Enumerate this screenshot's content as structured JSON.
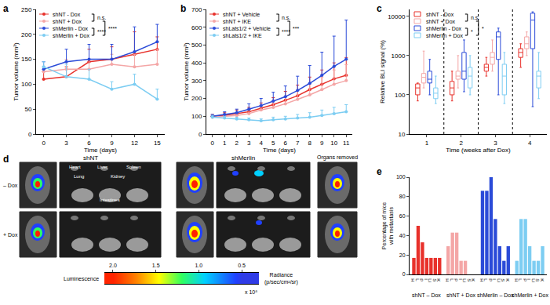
{
  "chart_data": [
    {
      "type": "line",
      "title": "a",
      "x": [
        0,
        3,
        6,
        9,
        12,
        15
      ],
      "x_label": "Time (days)",
      "y_label": "Tumor volume (mm³)",
      "xlim": [
        -1,
        16
      ],
      "xticks": [
        0,
        3,
        6,
        9,
        12,
        15
      ],
      "ylim": [
        0,
        250
      ],
      "yticks": [
        0,
        50,
        100,
        150,
        200,
        250
      ],
      "grid": false,
      "marker": "circle",
      "series": [
        {
          "name": "shNT - Dox",
          "color": "#e8312b",
          "values": [
            110,
            115,
            145,
            150,
            160,
            170
          ],
          "error": [
            15,
            20,
            25,
            25,
            45,
            25
          ]
        },
        {
          "name": "shNT + Dox",
          "color": "#f4a6a6",
          "values": [
            125,
            130,
            130,
            140,
            135,
            140
          ],
          "error": [
            10,
            20,
            20,
            20,
            25,
            30
          ]
        },
        {
          "name": "shMerlin - Dox",
          "color": "#2b4bd8",
          "values": [
            130,
            145,
            150,
            150,
            165,
            185
          ],
          "error": [
            15,
            25,
            30,
            30,
            50,
            35
          ]
        },
        {
          "name": "shMerlin + Dox",
          "color": "#7dcdf2",
          "values": [
            135,
            115,
            110,
            90,
            100,
            70
          ],
          "error": [
            10,
            25,
            20,
            15,
            20,
            20
          ]
        }
      ],
      "annotations": [
        {
          "text": "n.s.",
          "between": [
            "shNT - Dox",
            "shNT + Dox"
          ]
        },
        {
          "text": "****",
          "between": [
            "shMerlin - Dox",
            "shMerlin + Dox"
          ]
        },
        {
          "text": "****",
          "between": [
            "shNT + Dox",
            "shMerlin + Dox"
          ]
        }
      ]
    },
    {
      "type": "line",
      "title": "b",
      "x": [
        0,
        1,
        2,
        3,
        4,
        5,
        6,
        7,
        8,
        9,
        10,
        11
      ],
      "x_label": "Time (days)",
      "y_label": "Tumor volume (mm³)",
      "xlim": [
        -0.5,
        11.5
      ],
      "xticks": [
        0,
        1,
        2,
        3,
        4,
        5,
        6,
        7,
        8,
        9,
        10,
        11
      ],
      "ylim": [
        0,
        700
      ],
      "yticks": [
        0,
        100,
        200,
        300,
        400,
        500,
        600,
        700
      ],
      "grid": false,
      "marker": "circle",
      "series": [
        {
          "name": "shNT + Vehicle",
          "color": "#e8312b",
          "values": [
            100,
            105,
            115,
            125,
            145,
            165,
            190,
            215,
            250,
            280,
            310,
            330
          ],
          "error": [
            10,
            15,
            20,
            25,
            30,
            40,
            50,
            60,
            70,
            80,
            90,
            100
          ]
        },
        {
          "name": "shNT + IKE",
          "color": "#f4a6a6",
          "values": [
            95,
            100,
            105,
            115,
            135,
            150,
            170,
            195,
            220,
            250,
            280,
            300
          ],
          "error": [
            10,
            15,
            15,
            20,
            25,
            35,
            40,
            50,
            60,
            70,
            80,
            90
          ]
        },
        {
          "name": "shLats1/2 + Vehicle",
          "color": "#2b4bd8",
          "values": [
            100,
            110,
            120,
            140,
            160,
            185,
            210,
            245,
            285,
            330,
            380,
            420
          ],
          "error": [
            10,
            15,
            20,
            30,
            40,
            50,
            60,
            80,
            100,
            130,
            170,
            220
          ]
        },
        {
          "name": "shLats1/2 + IKE",
          "color": "#7dcdf2",
          "values": [
            95,
            90,
            85,
            80,
            75,
            80,
            85,
            90,
            95,
            105,
            115,
            125
          ],
          "error": [
            10,
            10,
            10,
            10,
            10,
            15,
            15,
            20,
            25,
            30,
            35,
            40
          ]
        }
      ],
      "annotations": [
        {
          "text": "n.s.",
          "between": [
            "shNT + Vehicle",
            "shNT + IKE"
          ]
        },
        {
          "text": "****",
          "between": [
            "shLats1/2 + Vehicle",
            "shLats1/2 + IKE"
          ]
        },
        {
          "text": "***",
          "between": [
            "shNT + IKE",
            "shLats1/2 + IKE"
          ]
        }
      ]
    },
    {
      "type": "box",
      "title": "c",
      "categories": [
        "1",
        "2",
        "3",
        "4"
      ],
      "x_label": "Time (weeks after Dox)",
      "y_label": "Relative BLI signal (%)",
      "log": "y",
      "ylim": [
        10,
        15000
      ],
      "yticks": [
        10,
        100,
        1000,
        10000
      ],
      "grid": false,
      "series": [
        {
          "name": "shNT - Dox",
          "color": "#e8312b",
          "min": [
            70,
            70,
            300,
            500
          ],
          "q1": [
            100,
            100,
            400,
            900
          ],
          "median": [
            150,
            150,
            500,
            1200
          ],
          "q3": [
            190,
            220,
            600,
            1500
          ],
          "max": [
            200,
            400,
            900,
            2000
          ]
        },
        {
          "name": "shNT + Dox",
          "color": "#f4a6a6",
          "min": [
            150,
            150,
            400,
            1000
          ],
          "q1": [
            200,
            250,
            600,
            1500
          ],
          "median": [
            280,
            300,
            900,
            2000
          ],
          "q3": [
            350,
            400,
            1200,
            3000
          ],
          "max": [
            1300,
            1000,
            2500,
            4000
          ]
        },
        {
          "name": "shMerlin - Dox",
          "color": "#2b4bd8",
          "min": [
            100,
            120,
            100,
            50
          ],
          "q1": [
            200,
            250,
            800,
            1500
          ],
          "median": [
            250,
            400,
            3000,
            8000
          ],
          "q3": [
            400,
            1200,
            4000,
            12000
          ],
          "max": [
            800,
            2500,
            5000,
            13000
          ]
        },
        {
          "name": "shMerlin + Dox",
          "color": "#7dcdf2",
          "min": [
            60,
            100,
            60,
            80
          ],
          "q1": [
            80,
            150,
            100,
            150
          ],
          "median": [
            110,
            300,
            300,
            300
          ],
          "q3": [
            150,
            500,
            600,
            400
          ],
          "max": [
            300,
            1000,
            1200,
            1200
          ]
        }
      ],
      "annotations": [
        {
          "text": "n.s.",
          "between": [
            "shNT - Dox",
            "shNT + Dox"
          ]
        },
        {
          "text": "*",
          "between": [
            "shMerlin - Dox",
            "shMerlin + Dox"
          ]
        },
        {
          "text": "*",
          "between": [
            "shNT + Dox",
            "shMerlin + Dox"
          ]
        }
      ]
    },
    {
      "type": "image",
      "title": "d",
      "columns": [
        "shNT",
        "shMerlin",
        "Organs removed"
      ],
      "rows": [
        "– Dox",
        "+ Dox"
      ],
      "organs": [
        "Heart",
        "Liver",
        "Spleen",
        "Lung",
        "Kidney",
        "Intestines"
      ],
      "colorbar": {
        "title": "Luminescence",
        "unit": [
          "Radiance",
          "(p/sec/cm²/sr)"
        ],
        "multiplier": "x 10⁸",
        "range": [
          2.1,
          0.3
        ],
        "ticks": [
          {
            "value": 2,
            "label": "2.0"
          },
          {
            "value": 1.5,
            "label": "1.5"
          },
          {
            "value": 1,
            "label": "1.0"
          },
          {
            "value": 0.5,
            "label": "0.5"
          }
        ]
      }
    },
    {
      "type": "bar",
      "title": "e",
      "categories": [
        "H",
        "L",
        "P",
        "I",
        "Li",
        "S",
        "K"
      ],
      "y_label": [
        "Percentage of mice",
        "with metastasis"
      ],
      "ylim": [
        0,
        100
      ],
      "yticks": [
        0,
        20,
        40,
        60,
        80,
        100
      ],
      "grid": false,
      "series": [
        {
          "name": "shNT – Dox",
          "color": "#e8312b",
          "values": [
            17,
            50,
            33,
            17,
            17,
            17,
            17
          ]
        },
        {
          "name": "shNT + Dox",
          "color": "#f4a6a6",
          "values": [
            29,
            43,
            43,
            14,
            14,
            0,
            0
          ]
        },
        {
          "name": "shMerlin – Dox",
          "color": "#2b4bd8",
          "values": [
            86,
            86,
            100,
            57,
            29,
            14,
            29
          ]
        },
        {
          "name": "shMerlin + Dox",
          "color": "#7dcdf2",
          "values": [
            14,
            57,
            57,
            29,
            14,
            14,
            29
          ]
        }
      ]
    }
  ]
}
